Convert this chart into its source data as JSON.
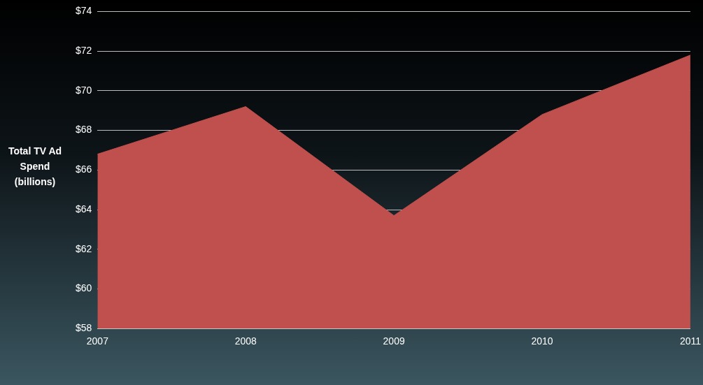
{
  "chart_data": {
    "type": "area",
    "ylabel": "Total TV Ad Spend (billions)",
    "categories": [
      "2007",
      "2008",
      "2009",
      "2010",
      "2011"
    ],
    "series": [
      {
        "color": "#c0504d",
        "values": [
          66.8,
          69.2,
          63.7,
          68.8,
          71.8
        ]
      }
    ],
    "ylim": [
      58,
      74
    ],
    "yticks": [
      {
        "value": 58,
        "label": "$58"
      },
      {
        "value": 60,
        "label": "$60"
      },
      {
        "value": 62,
        "label": "$62"
      },
      {
        "value": 64,
        "label": "$64"
      },
      {
        "value": 66,
        "label": "$66"
      },
      {
        "value": 68,
        "label": "$68"
      },
      {
        "value": 70,
        "label": "$70"
      },
      {
        "value": 72,
        "label": "$72"
      },
      {
        "value": 74,
        "label": "$74"
      }
    ],
    "grid": "y",
    "legend": false
  }
}
